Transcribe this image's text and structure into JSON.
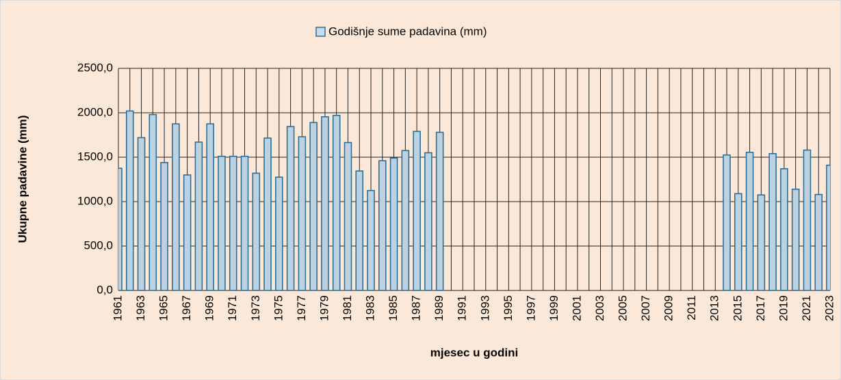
{
  "chart_data": {
    "type": "bar",
    "legend": "Godišnje sume padavina (mm)",
    "ylabel": "Ukupne padavine (mm)",
    "xlabel": "mjesec u godini",
    "categories": [
      "1961",
      null,
      "1963",
      null,
      "1965",
      null,
      "1967",
      null,
      "1969",
      null,
      "1971",
      null,
      "1973",
      null,
      "1975",
      null,
      "1977",
      null,
      "1979",
      null,
      "1981",
      null,
      "1983",
      null,
      "1985",
      null,
      "1987",
      null,
      "1989",
      null,
      "1991",
      null,
      "1993",
      null,
      "1995",
      null,
      "1997",
      null,
      "1999",
      null,
      "2001",
      null,
      "2003",
      null,
      "2005",
      null,
      "2007",
      null,
      "2009",
      null,
      "2011",
      null,
      "2013",
      null,
      "2015",
      null,
      "2017",
      null,
      "2019",
      null,
      "2021",
      null,
      "2023"
    ],
    "values": [
      1375,
      2020,
      1720,
      1980,
      1440,
      1875,
      1300,
      1670,
      1875,
      1510,
      1510,
      1510,
      1320,
      1715,
      1275,
      1845,
      1730,
      1890,
      1955,
      1970,
      1665,
      1345,
      1125,
      1460,
      1490,
      1575,
      1790,
      1550,
      1780,
      null,
      null,
      null,
      null,
      null,
      null,
      null,
      null,
      null,
      null,
      null,
      null,
      null,
      null,
      null,
      null,
      null,
      null,
      null,
      null,
      null,
      null,
      null,
      null,
      1525,
      1090,
      1555,
      1075,
      1540,
      1370,
      1140,
      1580,
      1080,
      1410
    ],
    "color": "#2b6e96",
    "ylim": [
      0,
      2500
    ],
    "yticks": [
      {
        "value": 0,
        "label": "0,0"
      },
      {
        "value": 500,
        "label": "500,0"
      },
      {
        "value": 1000,
        "label": "1000,0"
      },
      {
        "value": 1500,
        "label": "1500,0"
      },
      {
        "value": 2000,
        "label": "2000,0"
      },
      {
        "value": 2500,
        "label": "2500,0"
      }
    ],
    "grid": true
  }
}
